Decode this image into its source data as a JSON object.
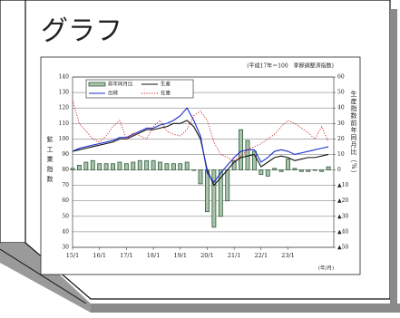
{
  "heading": "グラフ",
  "chart_data": {
    "type": "bar",
    "note": "(平成17年＝100　季節調整済指数)",
    "y_label": "鉱工業指数",
    "y2_label": "生産指数前年同月比（%）",
    "x_unit": "(年/月)",
    "x": [
      15,
      15.25,
      15.5,
      15.75,
      16,
      16.25,
      16.5,
      16.75,
      17,
      17.25,
      17.5,
      17.75,
      18,
      18.25,
      18.5,
      18.75,
      19,
      19.25,
      19.5,
      19.75,
      20,
      20.25,
      20.5,
      20.75,
      21,
      21.25,
      21.5,
      21.75,
      22,
      22.25,
      22.5,
      22.75,
      23,
      23.25,
      23.5,
      23.75,
      24,
      24.25,
      24.5
    ],
    "xlim": [
      15,
      24.7
    ],
    "xticks": [
      {
        "value": 15,
        "label": "15/1"
      },
      {
        "value": 16,
        "label": "16/1"
      },
      {
        "value": 17,
        "label": "17/1"
      },
      {
        "value": 18,
        "label": "18/1"
      },
      {
        "value": 19,
        "label": "19/1"
      },
      {
        "value": 20,
        "label": "20/1"
      },
      {
        "value": 21,
        "label": "21/1"
      },
      {
        "value": 22,
        "label": "22/1"
      },
      {
        "value": 23,
        "label": "23/1"
      }
    ],
    "ylim": [
      30,
      140
    ],
    "yticks": [
      30,
      40,
      50,
      60,
      70,
      80,
      90,
      100,
      110,
      120,
      130,
      140
    ],
    "y2lim": [
      -50,
      60
    ],
    "y2ticks": [
      {
        "value": -50,
        "label": "▲50"
      },
      {
        "value": -40,
        "label": "▲40"
      },
      {
        "value": -30,
        "label": "▲30"
      },
      {
        "value": -20,
        "label": "▲20"
      },
      {
        "value": -10,
        "label": "▲10"
      },
      0,
      10,
      20,
      30,
      40,
      50,
      60
    ],
    "grid": true,
    "series": [
      {
        "name": "前年同月比",
        "type": "bar",
        "axis": "y2",
        "color": "#2e5a3c",
        "values": [
          1,
          3,
          5,
          6,
          4,
          4,
          4,
          5,
          4,
          5,
          6,
          6,
          6,
          5,
          4,
          4,
          4,
          5,
          0,
          -9,
          -27,
          -37,
          -30,
          -20,
          6,
          26,
          19,
          12,
          -3,
          -4,
          1,
          -1,
          7,
          1,
          -1,
          -1,
          0,
          -1,
          2
        ]
      },
      {
        "name": "生産",
        "type": "line",
        "color": "#111111",
        "style": "solid",
        "values": [
          92,
          93,
          94,
          95,
          96,
          97,
          98,
          100,
          100,
          102,
          104,
          106,
          106,
          107,
          108,
          110,
          110,
          112,
          108,
          100,
          80,
          70,
          75,
          80,
          85,
          88,
          89,
          90,
          82,
          85,
          88,
          89,
          88,
          86,
          87,
          88,
          88,
          89,
          90
        ]
      },
      {
        "name": "出荷",
        "type": "line",
        "color": "#1a2fd0",
        "style": "solid",
        "values": [
          92,
          94,
          95,
          96,
          97,
          98,
          99,
          101,
          101,
          103,
          105,
          107,
          107,
          109,
          110,
          112,
          115,
          120,
          112,
          102,
          78,
          72,
          78,
          83,
          88,
          92,
          93,
          93,
          85,
          88,
          92,
          93,
          92,
          90,
          91,
          92,
          93,
          94,
          95
        ]
      },
      {
        "name": "在庫",
        "type": "line",
        "color": "#d02020",
        "style": "dotted",
        "values": [
          125,
          110,
          105,
          100,
          98,
          102,
          108,
          112,
          100,
          104,
          102,
          100,
          108,
          112,
          105,
          103,
          102,
          106,
          115,
          118,
          112,
          98,
          90,
          88,
          86,
          89,
          93,
          95,
          97,
          100,
          103,
          108,
          112,
          110,
          107,
          104,
          100,
          108,
          98
        ]
      }
    ]
  }
}
